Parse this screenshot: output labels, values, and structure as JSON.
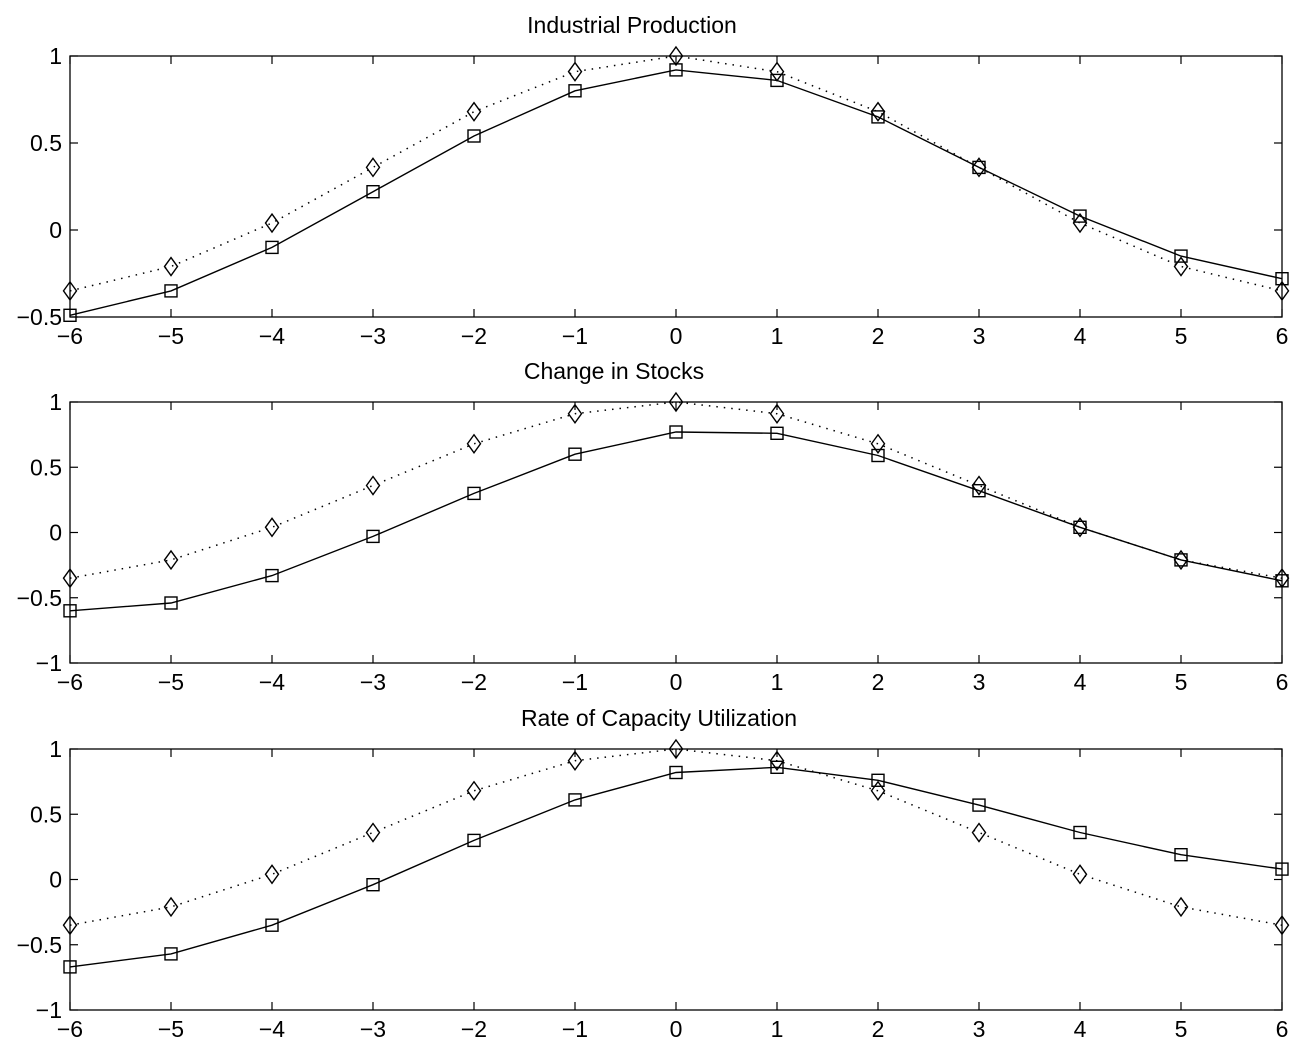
{
  "chart_data": [
    {
      "type": "line",
      "title": "Industrial Production",
      "xlabel": "",
      "ylabel": "",
      "xlim": [
        -6,
        6
      ],
      "ylim": [
        -0.5,
        1
      ],
      "xticks": [
        "−6",
        "−5",
        "−4",
        "−3",
        "−2",
        "−1",
        "0",
        "1",
        "2",
        "3",
        "4",
        "5",
        "6"
      ],
      "yticks": [
        "−0.5",
        "0",
        "0.5",
        "1"
      ],
      "grid": false,
      "x": [
        -6,
        -5,
        -4,
        -3,
        -2,
        -1,
        0,
        1,
        2,
        3,
        4,
        5,
        6
      ],
      "series": [
        {
          "marker": "square",
          "line": "solid",
          "color": "#000000",
          "values": [
            -0.49,
            -0.35,
            -0.1,
            0.22,
            0.54,
            0.8,
            0.92,
            0.86,
            0.65,
            0.36,
            0.08,
            -0.15,
            -0.28
          ]
        },
        {
          "marker": "diamond",
          "line": "dotted",
          "color": "#000000",
          "values": [
            -0.35,
            -0.21,
            0.04,
            0.36,
            0.68,
            0.91,
            1.0,
            0.91,
            0.68,
            0.36,
            0.04,
            -0.21,
            -0.35
          ]
        }
      ]
    },
    {
      "type": "line",
      "title": "Change in Stocks",
      "xlabel": "",
      "ylabel": "",
      "xlim": [
        -6,
        6
      ],
      "ylim": [
        -1,
        1
      ],
      "xticks": [
        "−6",
        "−5",
        "−4",
        "−3",
        "−2",
        "−1",
        "0",
        "1",
        "2",
        "3",
        "4",
        "5",
        "6"
      ],
      "yticks": [
        "−1",
        "−0.5",
        "0",
        "0.5",
        "1"
      ],
      "grid": false,
      "x": [
        -6,
        -5,
        -4,
        -3,
        -2,
        -1,
        0,
        1,
        2,
        3,
        4,
        5,
        6
      ],
      "series": [
        {
          "marker": "square",
          "line": "solid",
          "color": "#000000",
          "values": [
            -0.6,
            -0.54,
            -0.33,
            -0.03,
            0.3,
            0.6,
            0.77,
            0.76,
            0.59,
            0.32,
            0.04,
            -0.21,
            -0.37
          ]
        },
        {
          "marker": "diamond",
          "line": "dotted",
          "color": "#000000",
          "values": [
            -0.35,
            -0.21,
            0.04,
            0.36,
            0.68,
            0.91,
            1.0,
            0.91,
            0.68,
            0.36,
            0.04,
            -0.21,
            -0.35
          ]
        }
      ]
    },
    {
      "type": "line",
      "title": "Rate of Capacity Utilization",
      "xlabel": "",
      "ylabel": "",
      "xlim": [
        -6,
        6
      ],
      "ylim": [
        -1,
        1
      ],
      "xticks": [
        "−6",
        "−5",
        "−4",
        "−3",
        "−2",
        "−1",
        "0",
        "1",
        "2",
        "3",
        "4",
        "5",
        "6"
      ],
      "yticks": [
        "−1",
        "−0.5",
        "0",
        "0.5",
        "1"
      ],
      "grid": false,
      "x": [
        -6,
        -5,
        -4,
        -3,
        -2,
        -1,
        0,
        1,
        2,
        3,
        4,
        5,
        6
      ],
      "series": [
        {
          "marker": "square",
          "line": "solid",
          "color": "#000000",
          "values": [
            -0.67,
            -0.57,
            -0.35,
            -0.04,
            0.3,
            0.61,
            0.82,
            0.86,
            0.76,
            0.57,
            0.36,
            0.19,
            0.08
          ]
        },
        {
          "marker": "diamond",
          "line": "dotted",
          "color": "#000000",
          "values": [
            -0.35,
            -0.21,
            0.04,
            0.36,
            0.68,
            0.91,
            1.0,
            0.91,
            0.68,
            0.36,
            0.04,
            -0.21,
            -0.35
          ]
        }
      ]
    }
  ]
}
